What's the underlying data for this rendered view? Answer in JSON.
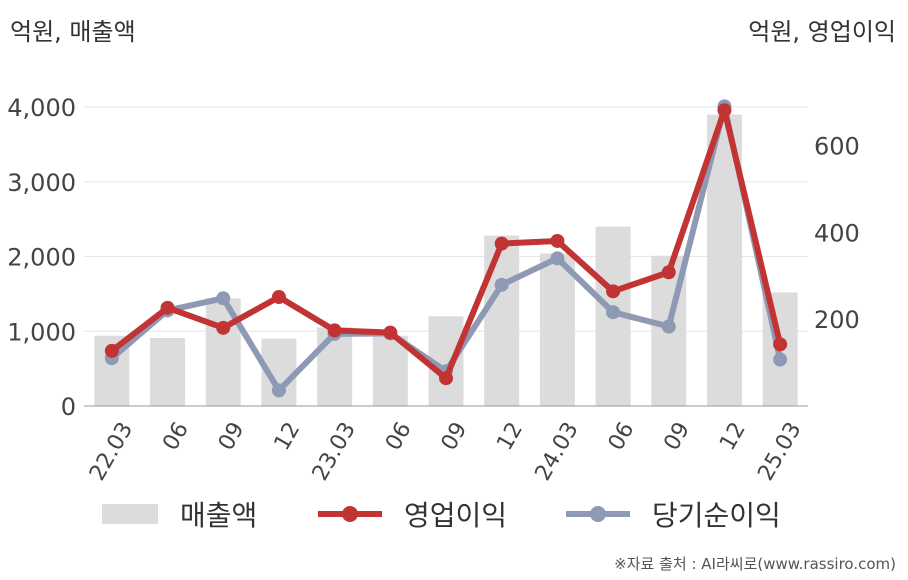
{
  "units": {
    "left": "억원, 매출액",
    "right": "억원, 영업이익"
  },
  "legend": {
    "revenue": "매출액",
    "operating_profit": "영업이익",
    "net_income": "당기순이익"
  },
  "source": "※자료 출처 : AI라씨로(www.rassiro.com)",
  "colors": {
    "revenue": "#dcdcdc",
    "operating_profit": "#c23433",
    "net_income": "#8e99b3"
  },
  "chart_data": {
    "type": "bar",
    "categories": [
      "22.03",
      "06",
      "09",
      "12",
      "23.03",
      "06",
      "09",
      "12",
      "24.03",
      "06",
      "09",
      "12",
      "25.03"
    ],
    "y_left": {
      "ticks": [
        "0",
        "1,000",
        "2,000",
        "3,000",
        "4,000"
      ],
      "range": [
        0,
        4000
      ]
    },
    "y_right": {
      "ticks": [
        "200",
        "400",
        "600"
      ],
      "range": [
        0,
        700
      ]
    },
    "grid": true,
    "legend_position": "bottom",
    "series": [
      {
        "name": "매출액",
        "type": "bar",
        "axis": "left",
        "values": [
          940,
          910,
          1440,
          900,
          1050,
          940,
          1200,
          2280,
          2040,
          2400,
          2010,
          3900,
          1520
        ]
      },
      {
        "name": "영업이익",
        "type": "line",
        "axis": "right",
        "values": [
          127,
          226,
          180,
          251,
          174,
          169,
          64,
          374,
          380,
          264,
          308,
          681,
          142
        ]
      },
      {
        "name": "당기순이익",
        "type": "line",
        "axis": "right",
        "values": [
          110,
          220,
          248,
          36,
          166,
          167,
          80,
          279,
          340,
          216,
          183,
          690,
          107
        ]
      }
    ]
  }
}
